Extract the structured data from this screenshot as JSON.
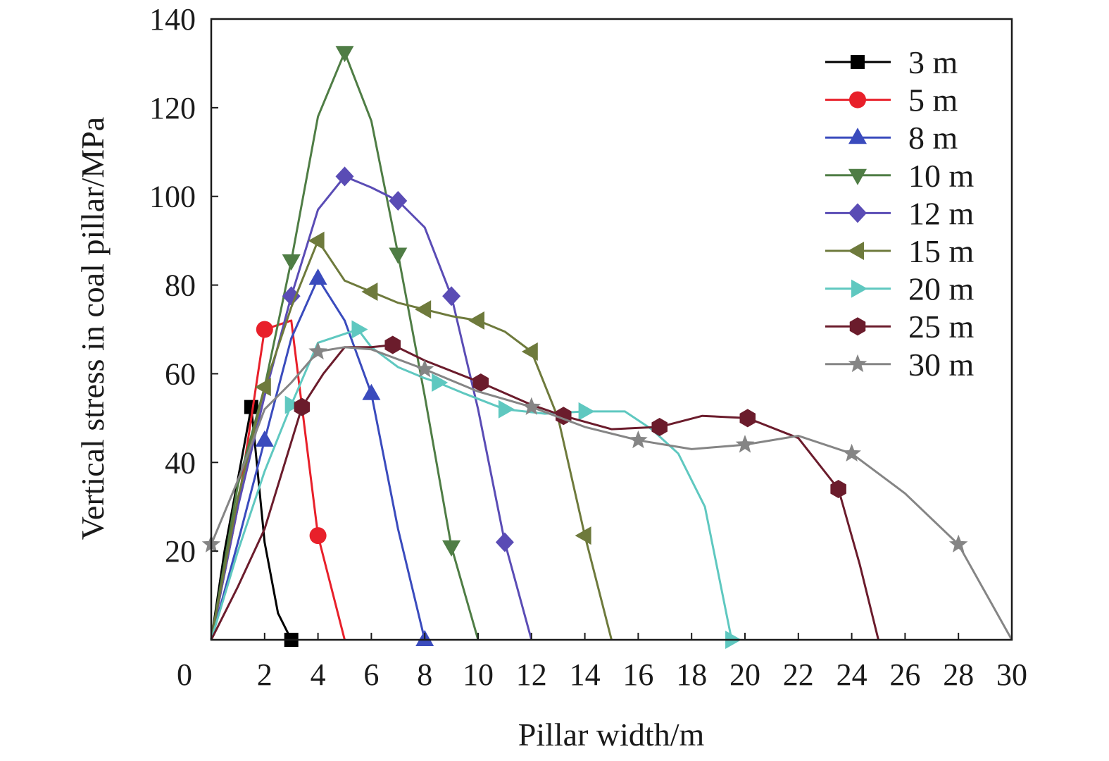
{
  "chart_data": {
    "type": "line",
    "title": "",
    "xlabel": "Pillar width/m",
    "ylabel": "Vertical stress in coal pillar/MPa",
    "xlim": [
      0,
      30
    ],
    "ylim": [
      0,
      140
    ],
    "x_ticks": [
      "0",
      "2",
      "4",
      "6",
      "8",
      "10",
      "12",
      "14",
      "16",
      "18",
      "20",
      "22",
      "24",
      "26",
      "28",
      "30"
    ],
    "y_ticks": [
      "20",
      "40",
      "60",
      "80",
      "100",
      "120",
      "140"
    ],
    "grid": false,
    "legend_position": "top-right",
    "series": [
      {
        "name": "3 m",
        "color": "#000000",
        "marker": "square",
        "points": [
          [
            0,
            0
          ],
          [
            0.5,
            20
          ],
          [
            1.5,
            52.5
          ],
          [
            2,
            22
          ],
          [
            2.5,
            6
          ],
          [
            3,
            0
          ]
        ],
        "marker_points": [
          [
            1.5,
            52.5
          ],
          [
            3,
            0
          ]
        ]
      },
      {
        "name": "5 m",
        "color": "#e8202a",
        "marker": "circle",
        "points": [
          [
            0,
            0
          ],
          [
            1,
            30
          ],
          [
            2,
            70
          ],
          [
            3,
            72
          ],
          [
            4,
            23.5
          ],
          [
            5,
            0
          ]
        ],
        "marker_points": [
          [
            2,
            70
          ],
          [
            4,
            23.5
          ]
        ]
      },
      {
        "name": "8 m",
        "color": "#3a4bbd",
        "marker": "triangle-up",
        "points": [
          [
            0,
            0
          ],
          [
            1,
            22
          ],
          [
            2,
            45
          ],
          [
            3,
            68
          ],
          [
            4,
            81.5
          ],
          [
            5,
            72
          ],
          [
            6,
            55.5
          ],
          [
            7,
            25
          ],
          [
            8,
            0
          ]
        ],
        "marker_points": [
          [
            2,
            45
          ],
          [
            4,
            81.5
          ],
          [
            6,
            55.5
          ],
          [
            8,
            0
          ]
        ]
      },
      {
        "name": "10 m",
        "color": "#4f7d45",
        "marker": "triangle-down",
        "points": [
          [
            0,
            0
          ],
          [
            1,
            35
          ],
          [
            2,
            57
          ],
          [
            3,
            85.5
          ],
          [
            4,
            118
          ],
          [
            5,
            132.5
          ],
          [
            6,
            117
          ],
          [
            7,
            87
          ],
          [
            8,
            55
          ],
          [
            9,
            21
          ],
          [
            10,
            0
          ]
        ],
        "marker_points": [
          [
            3,
            85.5
          ],
          [
            5,
            132.5
          ],
          [
            7,
            87
          ],
          [
            9,
            21
          ]
        ]
      },
      {
        "name": "12 m",
        "color": "#5a4cb5",
        "marker": "diamond",
        "points": [
          [
            0,
            0
          ],
          [
            1,
            30
          ],
          [
            2,
            55
          ],
          [
            3,
            77.5
          ],
          [
            4,
            97
          ],
          [
            5,
            104.5
          ],
          [
            6,
            102
          ],
          [
            7,
            99
          ],
          [
            8,
            93
          ],
          [
            9,
            77.5
          ],
          [
            10,
            52
          ],
          [
            11,
            22
          ],
          [
            12,
            0
          ]
        ],
        "marker_points": [
          [
            3,
            77.5
          ],
          [
            5,
            104.5
          ],
          [
            7,
            99
          ],
          [
            9,
            77.5
          ],
          [
            11,
            22
          ]
        ]
      },
      {
        "name": "15 m",
        "color": "#6e7a3c",
        "marker": "triangle-left",
        "points": [
          [
            0,
            0
          ],
          [
            1,
            32
          ],
          [
            2,
            57
          ],
          [
            3,
            75
          ],
          [
            4,
            90
          ],
          [
            5,
            81
          ],
          [
            6,
            78.5
          ],
          [
            7,
            76
          ],
          [
            8,
            74.5
          ],
          [
            9,
            73
          ],
          [
            10,
            72
          ],
          [
            11,
            69.5
          ],
          [
            12,
            65
          ],
          [
            13,
            50
          ],
          [
            14,
            23.5
          ],
          [
            15,
            0
          ]
        ],
        "marker_points": [
          [
            2,
            57
          ],
          [
            4,
            90
          ],
          [
            6,
            78.5
          ],
          [
            8,
            74.5
          ],
          [
            10,
            72
          ],
          [
            12,
            65
          ],
          [
            14,
            23.5
          ]
        ]
      },
      {
        "name": "20 m",
        "color": "#5fc8c0",
        "marker": "triangle-right",
        "points": [
          [
            0,
            0
          ],
          [
            1,
            20
          ],
          [
            2,
            38
          ],
          [
            3,
            53
          ],
          [
            4,
            67
          ],
          [
            5,
            69
          ],
          [
            5.5,
            70
          ],
          [
            6,
            66
          ],
          [
            7,
            61.5
          ],
          [
            8,
            59
          ],
          [
            8.5,
            58
          ],
          [
            9.5,
            55.5
          ],
          [
            11,
            52
          ],
          [
            12.5,
            51
          ],
          [
            14,
            51.5
          ],
          [
            15.5,
            51.5
          ],
          [
            16.5,
            47.5
          ],
          [
            17.5,
            42
          ],
          [
            18.5,
            30
          ],
          [
            19,
            15
          ],
          [
            19.5,
            0
          ]
        ],
        "marker_points": [
          [
            3,
            53
          ],
          [
            5.5,
            70
          ],
          [
            8.5,
            58
          ],
          [
            11,
            52
          ],
          [
            14,
            51.5
          ],
          [
            19.5,
            0
          ]
        ]
      },
      {
        "name": "25 m",
        "color": "#6b1c2c",
        "marker": "hexagon",
        "points": [
          [
            0,
            0
          ],
          [
            1,
            12
          ],
          [
            2,
            25
          ],
          [
            3.4,
            52.5
          ],
          [
            4.2,
            60
          ],
          [
            5,
            66
          ],
          [
            6,
            66
          ],
          [
            6.8,
            66.5
          ],
          [
            8,
            63
          ],
          [
            10.1,
            58
          ],
          [
            12,
            53
          ],
          [
            13.2,
            50.5
          ],
          [
            15,
            47.5
          ],
          [
            16.8,
            48
          ],
          [
            18.4,
            50.5
          ],
          [
            20.1,
            50
          ],
          [
            22,
            45.5
          ],
          [
            23.5,
            34
          ],
          [
            24.3,
            17
          ],
          [
            25,
            0
          ]
        ],
        "marker_points": [
          [
            3.4,
            52.5
          ],
          [
            6.8,
            66.5
          ],
          [
            10.1,
            58
          ],
          [
            13.2,
            50.5
          ],
          [
            16.8,
            48
          ],
          [
            20.1,
            50
          ],
          [
            23.5,
            34
          ]
        ]
      },
      {
        "name": "30 m",
        "color": "#858585",
        "marker": "star",
        "points": [
          [
            0,
            21.5
          ],
          [
            1,
            36
          ],
          [
            2,
            52
          ],
          [
            3,
            58
          ],
          [
            4,
            65
          ],
          [
            5,
            66
          ],
          [
            6,
            65.5
          ],
          [
            8,
            61
          ],
          [
            10,
            56
          ],
          [
            12,
            52.5
          ],
          [
            14,
            48
          ],
          [
            16,
            45
          ],
          [
            18,
            43
          ],
          [
            20,
            44
          ],
          [
            22,
            46
          ],
          [
            24,
            42
          ],
          [
            26,
            33
          ],
          [
            28,
            21.5
          ],
          [
            30,
            0
          ]
        ],
        "marker_points": [
          [
            0,
            21.5
          ],
          [
            4,
            65
          ],
          [
            8,
            61
          ],
          [
            12,
            52.5
          ],
          [
            16,
            45
          ],
          [
            20,
            44
          ],
          [
            24,
            42
          ],
          [
            28,
            21.5
          ]
        ]
      }
    ]
  }
}
